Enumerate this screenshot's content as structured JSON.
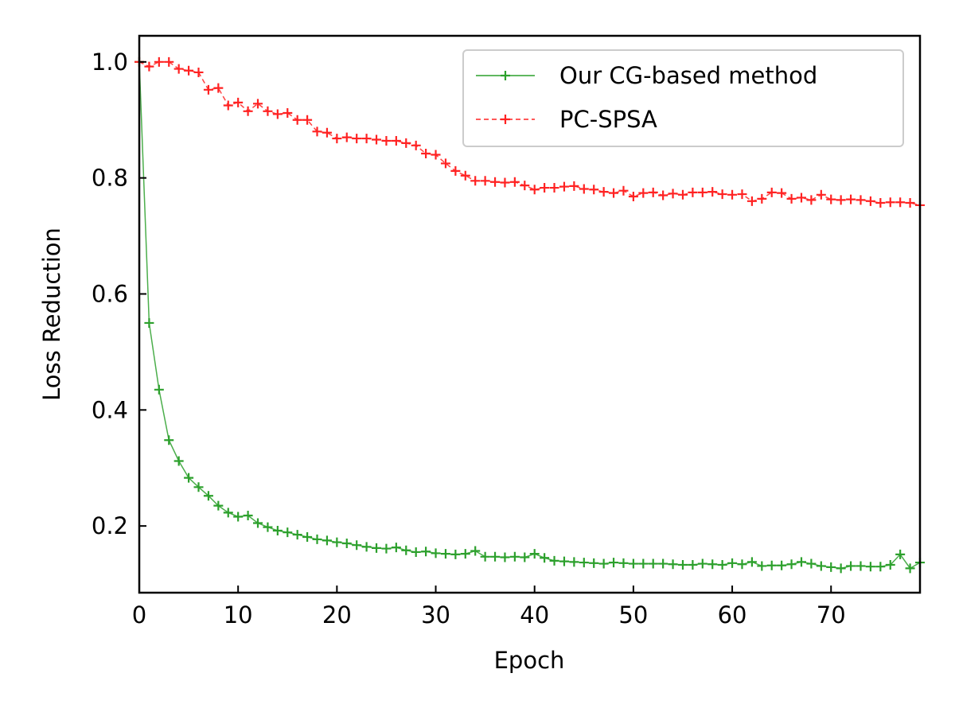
{
  "chart_data": {
    "type": "line",
    "title": "",
    "xlabel": "Epoch",
    "ylabel": "Loss Reduction",
    "xlim": [
      0,
      79
    ],
    "ylim": [
      0.085,
      1.045
    ],
    "xticks": [
      0,
      10,
      20,
      30,
      40,
      50,
      60,
      70
    ],
    "xtick_labels": [
      "0",
      "10",
      "20",
      "30",
      "40",
      "50",
      "60",
      "70"
    ],
    "yticks": [
      0.2,
      0.4,
      0.6,
      0.8,
      1.0
    ],
    "ytick_labels": [
      "0.2",
      "0.4",
      "0.6",
      "0.8",
      "1.0"
    ],
    "grid": false,
    "legend_position": "top-right",
    "x": [
      0,
      1,
      2,
      3,
      4,
      5,
      6,
      7,
      8,
      9,
      10,
      11,
      12,
      13,
      14,
      15,
      16,
      17,
      18,
      19,
      20,
      21,
      22,
      23,
      24,
      25,
      26,
      27,
      28,
      29,
      30,
      31,
      32,
      33,
      34,
      35,
      36,
      37,
      38,
      39,
      40,
      41,
      42,
      43,
      44,
      45,
      46,
      47,
      48,
      49,
      50,
      51,
      52,
      53,
      54,
      55,
      56,
      57,
      58,
      59,
      60,
      61,
      62,
      63,
      64,
      65,
      66,
      67,
      68,
      69,
      70,
      71,
      72,
      73,
      74,
      75,
      76,
      77,
      78,
      79
    ],
    "series": [
      {
        "name": "Our CG-based method",
        "color": "#2ca02c",
        "style": "solid",
        "marker": "+",
        "values": [
          1.0,
          0.55,
          0.435,
          0.348,
          0.312,
          0.283,
          0.267,
          0.252,
          0.235,
          0.223,
          0.216,
          0.218,
          0.205,
          0.198,
          0.192,
          0.189,
          0.185,
          0.181,
          0.177,
          0.175,
          0.172,
          0.17,
          0.167,
          0.164,
          0.162,
          0.161,
          0.163,
          0.158,
          0.155,
          0.156,
          0.153,
          0.152,
          0.151,
          0.152,
          0.157,
          0.147,
          0.147,
          0.146,
          0.147,
          0.146,
          0.152,
          0.145,
          0.14,
          0.139,
          0.138,
          0.137,
          0.136,
          0.135,
          0.137,
          0.136,
          0.135,
          0.135,
          0.135,
          0.135,
          0.134,
          0.133,
          0.133,
          0.135,
          0.134,
          0.133,
          0.136,
          0.134,
          0.138,
          0.131,
          0.132,
          0.132,
          0.134,
          0.138,
          0.135,
          0.131,
          0.129,
          0.127,
          0.131,
          0.131,
          0.13,
          0.13,
          0.133,
          0.151,
          0.127,
          0.137
        ]
      },
      {
        "name": "PC-SPSA",
        "color": "#ff2222",
        "style": "dashed",
        "marker": "+",
        "values": [
          1.0,
          0.992,
          1.0,
          1.0,
          0.988,
          0.985,
          0.982,
          0.952,
          0.955,
          0.925,
          0.93,
          0.915,
          0.928,
          0.915,
          0.91,
          0.912,
          0.9,
          0.9,
          0.88,
          0.878,
          0.868,
          0.87,
          0.868,
          0.868,
          0.866,
          0.864,
          0.864,
          0.86,
          0.856,
          0.842,
          0.84,
          0.825,
          0.812,
          0.804,
          0.795,
          0.795,
          0.793,
          0.792,
          0.793,
          0.787,
          0.78,
          0.783,
          0.783,
          0.785,
          0.786,
          0.781,
          0.78,
          0.776,
          0.774,
          0.778,
          0.768,
          0.774,
          0.775,
          0.77,
          0.773,
          0.771,
          0.775,
          0.775,
          0.776,
          0.772,
          0.771,
          0.772,
          0.76,
          0.764,
          0.775,
          0.774,
          0.764,
          0.766,
          0.762,
          0.771,
          0.763,
          0.762,
          0.763,
          0.762,
          0.76,
          0.757,
          0.758,
          0.758,
          0.757,
          0.753
        ]
      }
    ]
  }
}
